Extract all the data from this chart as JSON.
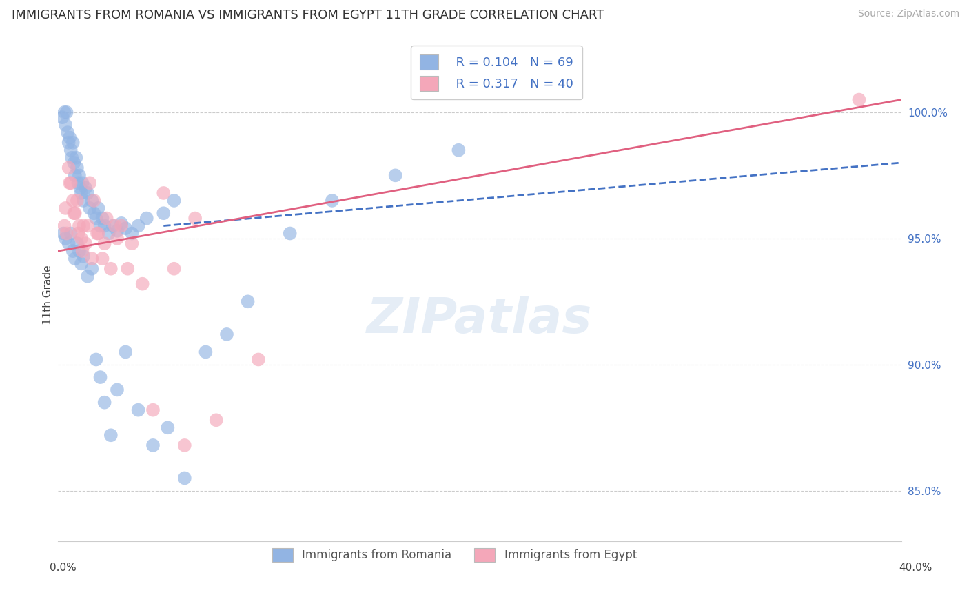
{
  "title": "IMMIGRANTS FROM ROMANIA VS IMMIGRANTS FROM EGYPT 11TH GRADE CORRELATION CHART",
  "source": "Source: ZipAtlas.com",
  "ylabel": "11th Grade",
  "xlim": [
    0.0,
    40.0
  ],
  "ylim": [
    83.0,
    102.5
  ],
  "yticks": [
    85.0,
    90.0,
    95.0,
    100.0
  ],
  "ytick_labels": [
    "85.0%",
    "90.0%",
    "95.0%",
    "100.0%"
  ],
  "legend_r1": "R = 0.104",
  "legend_n1": "N = 69",
  "legend_r2": "R = 0.317",
  "legend_n2": "N = 40",
  "color_romania": "#92b4e3",
  "color_egypt": "#f4a7b9",
  "color_line_romania": "#4472c4",
  "color_line_egypt": "#e06080",
  "color_text_blue": "#4472c4",
  "romania_x": [
    0.2,
    0.3,
    0.35,
    0.4,
    0.45,
    0.5,
    0.55,
    0.6,
    0.65,
    0.7,
    0.75,
    0.8,
    0.85,
    0.9,
    0.95,
    1.0,
    1.05,
    1.1,
    1.15,
    1.2,
    1.3,
    1.4,
    1.5,
    1.6,
    1.7,
    1.8,
    1.9,
    2.0,
    2.1,
    2.2,
    2.4,
    2.6,
    2.8,
    3.0,
    3.2,
    3.5,
    3.8,
    4.2,
    5.0,
    5.5,
    0.25,
    0.35,
    0.5,
    0.6,
    0.7,
    0.8,
    0.9,
    1.0,
    1.1,
    1.2,
    1.4,
    1.6,
    1.8,
    2.0,
    2.2,
    2.5,
    2.8,
    3.2,
    3.8,
    4.5,
    5.2,
    6.0,
    7.0,
    8.0,
    9.0,
    11.0,
    13.0,
    16.0,
    19.0
  ],
  "romania_y": [
    99.8,
    100.0,
    99.5,
    100.0,
    99.2,
    98.8,
    99.0,
    98.5,
    98.2,
    98.8,
    98.0,
    97.5,
    98.2,
    97.8,
    97.2,
    97.5,
    97.0,
    96.8,
    97.2,
    96.5,
    97.0,
    96.8,
    96.2,
    96.5,
    96.0,
    95.8,
    96.2,
    95.5,
    95.8,
    95.5,
    95.2,
    95.5,
    95.3,
    95.6,
    95.4,
    95.2,
    95.5,
    95.8,
    96.0,
    96.5,
    95.2,
    95.0,
    94.8,
    95.2,
    94.5,
    94.2,
    94.8,
    94.5,
    94.0,
    94.3,
    93.5,
    93.8,
    90.2,
    89.5,
    88.5,
    87.2,
    89.0,
    90.5,
    88.2,
    86.8,
    87.5,
    85.5,
    90.5,
    91.2,
    92.5,
    95.2,
    96.5,
    97.5,
    98.5
  ],
  "egypt_x": [
    0.3,
    0.4,
    0.5,
    0.6,
    0.7,
    0.8,
    0.9,
    1.0,
    1.1,
    1.2,
    1.3,
    1.5,
    1.7,
    1.9,
    2.1,
    2.3,
    2.5,
    2.8,
    3.0,
    3.5,
    4.0,
    5.0,
    5.5,
    6.5,
    0.35,
    0.55,
    0.75,
    0.95,
    1.15,
    1.4,
    1.6,
    1.85,
    2.2,
    2.7,
    3.3,
    4.5,
    6.0,
    7.5,
    9.5,
    38.0
  ],
  "egypt_y": [
    95.5,
    95.2,
    97.8,
    97.2,
    96.5,
    96.0,
    96.5,
    95.5,
    95.0,
    95.5,
    94.8,
    97.2,
    96.5,
    95.2,
    94.2,
    95.8,
    93.8,
    95.0,
    95.5,
    94.8,
    93.2,
    96.8,
    93.8,
    95.8,
    96.2,
    97.2,
    96.0,
    95.2,
    94.5,
    95.5,
    94.2,
    95.2,
    94.8,
    95.5,
    93.8,
    88.2,
    86.8,
    87.8,
    90.2,
    100.5
  ]
}
